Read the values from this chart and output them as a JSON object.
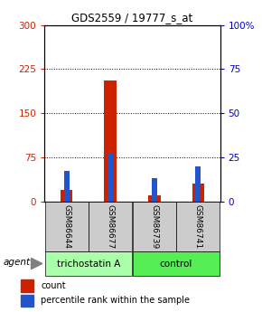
{
  "title": "GDS2559 / 19777_s_at",
  "samples": [
    "GSM86644",
    "GSM86677",
    "GSM86739",
    "GSM86741"
  ],
  "red_values": [
    20,
    205,
    10,
    30
  ],
  "blue_values": [
    17,
    27,
    13,
    20
  ],
  "blue_scale": 3.0,
  "groups": [
    {
      "label": "trichostatin A",
      "indices": [
        0,
        1
      ],
      "color": "#aaffaa"
    },
    {
      "label": "control",
      "indices": [
        2,
        3
      ],
      "color": "#55ee55"
    }
  ],
  "ylim_left": [
    0,
    300
  ],
  "ylim_right": [
    0,
    100
  ],
  "yticks_left": [
    0,
    75,
    150,
    225,
    300
  ],
  "yticks_right": [
    0,
    25,
    50,
    75,
    100
  ],
  "red_color": "#cc2200",
  "blue_color": "#2255cc",
  "agent_label": "agent",
  "left_tick_color": "#cc2200",
  "right_tick_color": "#0000cc",
  "sample_box_color": "#cccccc",
  "legend_red": "count",
  "legend_blue": "percentile rank within the sample"
}
